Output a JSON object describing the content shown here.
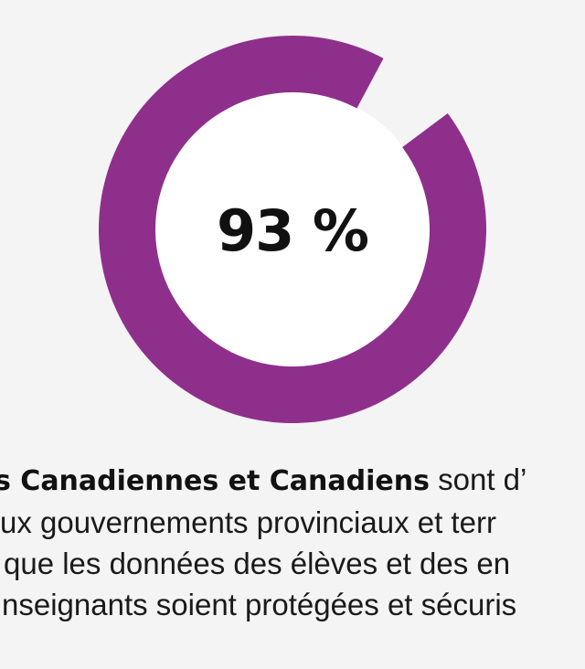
{
  "chart_data": {
    "type": "pie",
    "variant": "donut",
    "value": 93,
    "total": 100,
    "center_label": "93 %",
    "colors": {
      "filled": "#8f2f8c",
      "remaining": "#f4f4f4",
      "hole": "#ffffff",
      "background": "#f4f4f4"
    }
  },
  "caption": {
    "line1_bold": "s Canadiennes et Canadiens",
    "line1_rest": " sont d’",
    "line2": "ux gouvernements provinciaux et terr",
    "line3": " que les données des élèves et des en",
    "line4": "nseignants soient protégées et sécuris"
  }
}
